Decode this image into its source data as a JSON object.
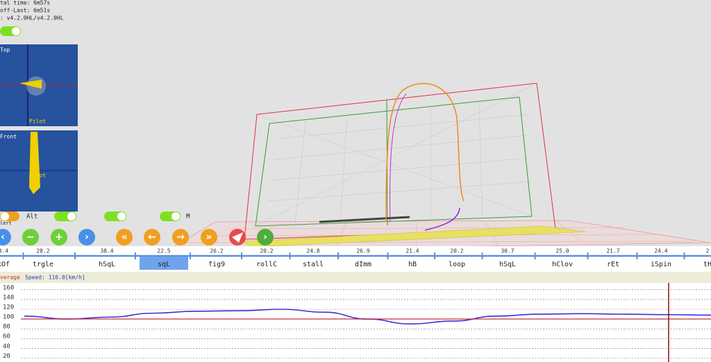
{
  "header": {
    "lines": [
      "tal time: 6m57s",
      "off-Last: 6m51s",
      ": v4.2.0HL/v4.2.0HL"
    ]
  },
  "panels": [
    {
      "label": "Top",
      "pilot": "Pilot"
    },
    {
      "label": "Front",
      "pilot": "Pilot"
    }
  ],
  "toggles": {
    "labels": [
      "Alt",
      "M",
      "lert"
    ]
  },
  "timeline": {
    "selected": 3,
    "items": [
      {
        "duration": "3.4",
        "name": "kOf"
      },
      {
        "duration": "28.2",
        "name": "trgle"
      },
      {
        "duration": "38.4",
        "name": "hSqL"
      },
      {
        "duration": "22.5",
        "name": "sqL"
      },
      {
        "duration": "26.2",
        "name": "fig9"
      },
      {
        "duration": "20.2",
        "name": "rollC"
      },
      {
        "duration": "24.8",
        "name": "stall"
      },
      {
        "duration": "26.9",
        "name": "dImm"
      },
      {
        "duration": "21.4",
        "name": "hB"
      },
      {
        "duration": "20.2",
        "name": "loop"
      },
      {
        "duration": "30.7",
        "name": "hSqL"
      },
      {
        "duration": "25.0",
        "name": "hClov"
      },
      {
        "duration": "21.7",
        "name": "rEt"
      },
      {
        "duration": "24.4",
        "name": "iSpin"
      },
      {
        "duration": "2",
        "name": "tH"
      }
    ]
  },
  "chart_data": {
    "type": "line",
    "label": "verage",
    "speed_text": "Speed: 116.0[km/h]",
    "series": [
      {
        "name": "Speed",
        "color": "#3b2fd6",
        "values": [
          106,
          100,
          104,
          112,
          116,
          117,
          120,
          114,
          100,
          90,
          96,
          106,
          110,
          111,
          110,
          109,
          108
        ]
      }
    ],
    "ylim": [
      12,
      174
    ],
    "yticks": [
      20,
      40,
      60,
      80,
      100,
      120,
      140,
      160
    ],
    "grid": true
  }
}
